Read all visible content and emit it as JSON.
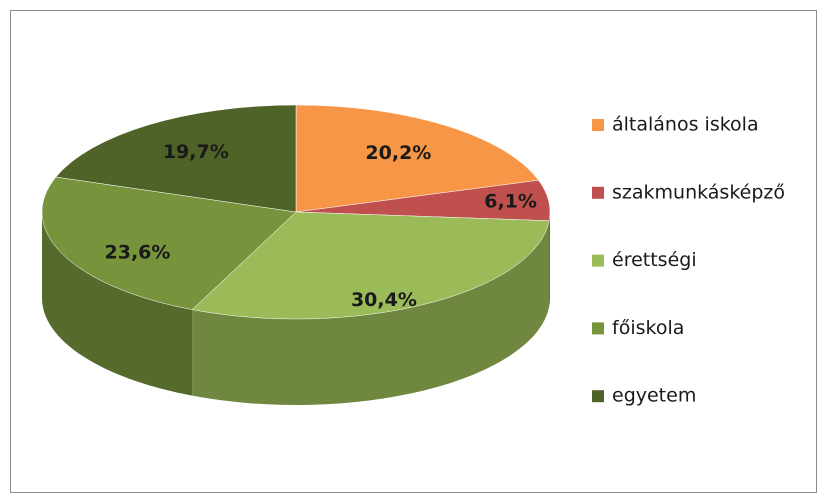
{
  "chart_data": {
    "type": "pie3d",
    "categories": [
      "általános iskola",
      "szakmunkásképző",
      "érettségi",
      "főiskola",
      "egyetem"
    ],
    "values": [
      20.2,
      6.1,
      30.4,
      23.6,
      19.7
    ],
    "value_labels": [
      "20,2%",
      "6,1%",
      "30,4%",
      "23,6%",
      "19,7%"
    ],
    "colors": [
      "#f79646",
      "#c0504d",
      "#9bbb59",
      "#77933c",
      "#4f6228"
    ],
    "legend": "right"
  }
}
